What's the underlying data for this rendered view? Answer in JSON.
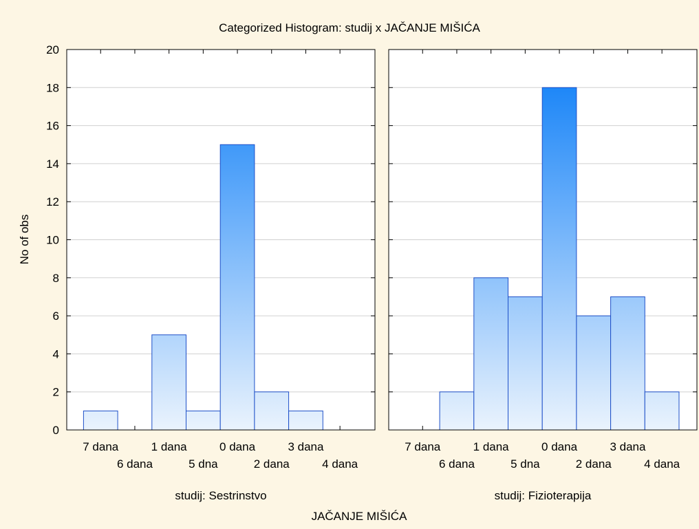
{
  "chart_data": {
    "type": "bar",
    "title": "Categorized Histogram: studij x JAČANJE MIŠIĆA",
    "xlabel": "JAČANJE MIŠIĆA",
    "ylabel": "No of obs",
    "ylim": [
      0,
      20
    ],
    "yticks": [
      0,
      2,
      4,
      6,
      8,
      10,
      12,
      14,
      16,
      18,
      20
    ],
    "grid": true,
    "categories": [
      "7 dana",
      "6 dana",
      "1 dana",
      "5 dna",
      "0 dana",
      "2 dana",
      "3 dana",
      "4 dana"
    ],
    "panels": [
      {
        "label": "studij: Sestrinstvo",
        "values": [
          1,
          0,
          5,
          1,
          15,
          2,
          1,
          0
        ]
      },
      {
        "label": "studij: Fizioterapija",
        "values": [
          0,
          2,
          8,
          7,
          18,
          6,
          7,
          2
        ]
      }
    ],
    "colors": {
      "bar_top": "#1e87f8",
      "bar_bottom": "#e8f2fd",
      "bar_edge": "#1d4fc8",
      "background": "#fdf6e4"
    }
  }
}
